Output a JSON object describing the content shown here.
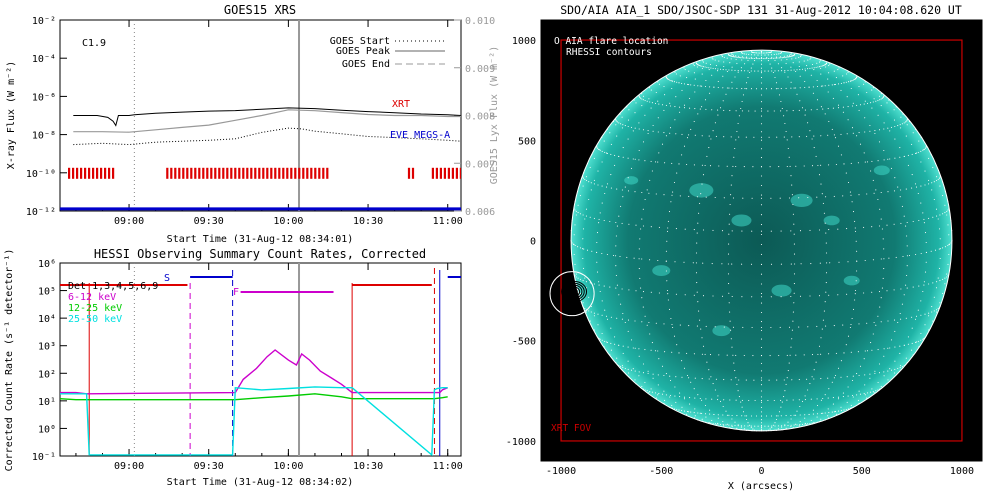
{
  "colors": {
    "black": "#000000",
    "gray": "#999999",
    "red": "#dd0000",
    "blue": "#0000cc",
    "magenta": "#cc00cc",
    "green": "#00cc00",
    "cyan": "#00e0e0",
    "white": "#ffffff",
    "darkred": "#cc0000"
  },
  "chart_data": [
    {
      "id": "goes",
      "type": "line",
      "title": "GOES15 XRS",
      "xlabel": "Start Time (31-Aug-12 08:34:01)",
      "ylabel": "X-ray Flux (W m⁻²)",
      "ylabel_right": "GOES15 Lyx Flux (W m⁻²)",
      "xlim": [
        "08:34",
        "11:05"
      ],
      "xticks": [
        "09:00",
        "09:30",
        "10:00",
        "10:30",
        "11:00"
      ],
      "ylim_log": [
        -12,
        -2
      ],
      "yticks": [
        "10⁻¹²",
        "10⁻¹⁰",
        "10⁻⁸",
        "10⁻⁶",
        "10⁻⁴",
        "10⁻²"
      ],
      "ylim_right": [
        0.006,
        0.01
      ],
      "yticks_right": [
        "0.006",
        "0.007",
        "0.008",
        "0.009",
        "0.010"
      ],
      "class_label": "C1.9",
      "legend": [
        {
          "label": "GOES Start",
          "style": "dotted"
        },
        {
          "label": "GOES Peak",
          "style": "solid"
        },
        {
          "label": "GOES End",
          "style": "dashed"
        }
      ],
      "peak_time": "10:04",
      "start_marker_time": "09:02",
      "series_labels": [
        {
          "text": "XRT",
          "color": "#dd0000"
        },
        {
          "text": "EVE MEGS-A",
          "color": "#0000cc"
        }
      ],
      "series": [
        {
          "color": "black",
          "style": "solid",
          "x": [
            "08:39",
            "08:48",
            "08:52",
            "08:54",
            "08:55",
            "08:56",
            "08:59",
            "09:00",
            "09:02",
            "09:10",
            "09:20",
            "09:30",
            "09:40",
            "09:50",
            "10:00",
            "10:10",
            "10:20",
            "10:30",
            "10:40",
            "10:50",
            "11:00",
            "11:05"
          ],
          "y": [
            1e-07,
            1e-07,
            8e-08,
            5e-08,
            3e-08,
            1e-07,
            1e-07,
            1e-07,
            1.1e-07,
            1.3e-07,
            1.5e-07,
            1.7e-07,
            1.8e-07,
            2.1e-07,
            2.5e-07,
            2.3e-07,
            1.9e-07,
            1.6e-07,
            1.4e-07,
            1.2e-07,
            1.1e-07,
            1e-07
          ]
        },
        {
          "color": "black",
          "style": "dotted",
          "x": [
            "08:39",
            "08:50",
            "09:00",
            "09:10",
            "09:20",
            "09:30",
            "09:40",
            "09:50",
            "10:00",
            "10:05",
            "10:10",
            "10:20",
            "10:30",
            "10:40",
            "10:50",
            "11:00",
            "11:05"
          ],
          "y": [
            3e-09,
            3.5e-09,
            3e-09,
            4e-09,
            4.5e-09,
            5e-09,
            6e-09,
            1.3e-08,
            2.2e-08,
            2e-08,
            1.5e-08,
            1.1e-08,
            8e-09,
            7e-09,
            6e-09,
            5e-09,
            4.5e-09
          ]
        },
        {
          "color": "gray",
          "style": "solid",
          "x": [
            "08:39",
            "08:50",
            "09:00",
            "09:10",
            "09:20",
            "09:30",
            "09:40",
            "09:50",
            "10:00",
            "10:10",
            "10:20",
            "10:30",
            "10:40",
            "10:50",
            "11:00",
            "11:05"
          ],
          "y": [
            0.00766,
            0.00766,
            0.00765,
            0.0077,
            0.00775,
            0.0078,
            0.0079,
            0.008,
            0.00812,
            0.0081,
            0.00806,
            0.00802,
            0.008,
            0.008,
            0.00798,
            0.00798
          ]
        }
      ],
      "xrt_spans": [
        [
          "08:37",
          "08:55"
        ],
        [
          "09:14",
          "10:15"
        ],
        [
          "10:45",
          "10:48"
        ],
        [
          "10:54",
          "11:05"
        ]
      ],
      "eve_level": 1.3e-12
    },
    {
      "id": "hessi",
      "type": "line",
      "title": "HESSI Observing Summary Count Rates, Corrected",
      "xlabel": "Start Time (31-Aug-12 08:34:02)",
      "ylabel": "Corrected Count Rate (s⁻¹ detector⁻¹)",
      "xlim": [
        "08:34",
        "11:05"
      ],
      "xticks": [
        "09:00",
        "09:30",
        "10:00",
        "10:30",
        "11:00"
      ],
      "ylim_log": [
        -1,
        6
      ],
      "yticks": [
        "10⁻¹",
        "10⁰",
        "10¹",
        "10²",
        "10³",
        "10⁴",
        "10⁵",
        "10⁶"
      ],
      "legend": [
        {
          "label": "Det 1,3,4,5,6,9",
          "color": "#000000"
        },
        {
          "label": "6-12 keV",
          "color": "#cc00cc"
        },
        {
          "label": "12-25 keV",
          "color": "#00cc00"
        },
        {
          "label": "25-50 keV",
          "color": "#00e0e0"
        }
      ],
      "annotations": [
        {
          "text": "S",
          "color": "#0000cc"
        },
        {
          "text": "F",
          "color": "#cc00cc"
        }
      ],
      "night_lines": [
        "08:45",
        "10:24",
        "10:55"
      ],
      "saa_lines": [
        "09:23",
        "09:39",
        "10:57"
      ],
      "red_bars": [
        [
          "08:34",
          "09:22"
        ],
        [
          "10:24",
          "10:54"
        ]
      ],
      "blue_bars": [
        [
          "09:23",
          "09:39"
        ],
        [
          "11:00",
          "11:05"
        ]
      ],
      "magenta_bar": [
        "09:42",
        "10:17"
      ],
      "series": [
        {
          "color": "magenta",
          "x": [
            "08:34",
            "08:40",
            "08:44",
            "09:40",
            "09:43",
            "09:48",
            "09:52",
            "09:55",
            "10:00",
            "10:03",
            "10:05",
            "10:08",
            "10:12",
            "10:16",
            "10:20",
            "10:24",
            "10:55",
            "10:57",
            "10:58",
            "11:00"
          ],
          "y": [
            20,
            20,
            18,
            20,
            60,
            150,
            400,
            700,
            300,
            200,
            500,
            300,
            120,
            70,
            40,
            20,
            20,
            20,
            25,
            30
          ]
        },
        {
          "color": "green",
          "x": [
            "08:34",
            "08:40",
            "08:44",
            "09:40",
            "09:50",
            "10:00",
            "10:10",
            "10:20",
            "10:24",
            "10:55",
            "10:58",
            "11:00"
          ],
          "y": [
            12,
            11,
            11,
            11,
            13,
            15,
            18,
            14,
            12,
            12,
            13,
            14
          ]
        },
        {
          "color": "cyan",
          "x": [
            "08:34",
            "08:40",
            "08:44",
            "08:45",
            "08:46",
            "09:39",
            "09:40",
            "09:50",
            "10:00",
            "10:10",
            "10:20",
            "10:24",
            "10:54",
            "10:55",
            "10:56",
            "10:58",
            "11:00"
          ],
          "y": [
            18,
            18,
            18,
            0.11,
            0.11,
            0.11,
            30,
            25,
            28,
            32,
            30,
            30,
            0.11,
            25,
            28,
            30,
            30
          ]
        }
      ],
      "peak_time": "10:04",
      "start_marker_time": "09:02"
    },
    {
      "id": "aia",
      "type": "other",
      "title": "SDO/AIA AIA_1 SDO/JSOC-SDP 131 31-Aug-2012 10:04:08.620 UT",
      "xlabel": "X (arcsecs)",
      "xlim": [
        -1100,
        1100
      ],
      "ylim": [
        -1100,
        1100
      ],
      "xticks": [
        "-1000",
        "-500",
        "0",
        "500",
        "1000"
      ],
      "yticks": [
        "-1000",
        "-500",
        "0",
        "500",
        "1000"
      ],
      "legend": [
        {
          "label": "O AIA flare location",
          "color": "#ffffff"
        },
        {
          "label": "RHESSI contours",
          "color": "#ffffff"
        }
      ],
      "fov_label": "XRT FOV",
      "fov": [
        -1000,
        1000,
        -1000,
        1000
      ],
      "disk_radius": 950,
      "flare_location": [
        -945,
        -265
      ]
    }
  ]
}
